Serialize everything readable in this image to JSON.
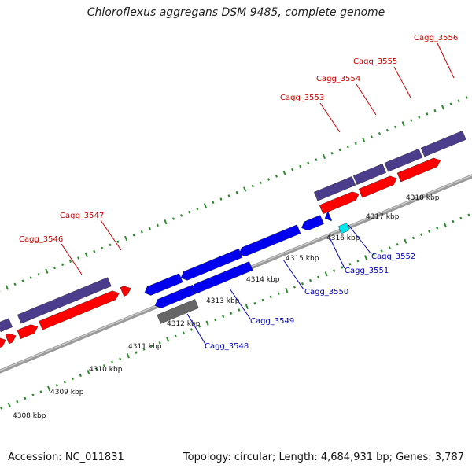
{
  "title": "Chloroflexus aggregans DSM 9485, complete genome",
  "footer": {
    "accession": "Accession: NC_011831",
    "summary": "Topology: circular; Length: 4,684,931 bp; Genes: 3,787"
  },
  "colors": {
    "backbone": "#8a8a8a",
    "tick": "#2e8b2e",
    "plus_label": "#cc0000",
    "minus_label": "#0000bb",
    "cds_dark": "#4b3c8c",
    "cds_red": "#ff0000",
    "cds_blue": "#0000ee",
    "cds_gray": "#666666",
    "cds_cyan": "#00e5ee",
    "cds_orange": "#e8900c"
  },
  "axis_labels": [
    "4308 kbp",
    "4309 kbp",
    "4310 kbp",
    "4311 kbp",
    "4312 kbp",
    "4313 kbp",
    "4314 kbp",
    "4315 kbp",
    "4316 kbp",
    "4317 kbp",
    "4318 kbp"
  ],
  "genes": [
    {
      "name": "Cagg_3546",
      "strand": "plus"
    },
    {
      "name": "Cagg_3547",
      "strand": "plus"
    },
    {
      "name": "Cagg_3548",
      "strand": "minus"
    },
    {
      "name": "Cagg_3549",
      "strand": "minus"
    },
    {
      "name": "Cagg_3550",
      "strand": "minus"
    },
    {
      "name": "Cagg_3551",
      "strand": "minus"
    },
    {
      "name": "Cagg_3552",
      "strand": "minus"
    },
    {
      "name": "Cagg_3553",
      "strand": "plus"
    },
    {
      "name": "Cagg_3554",
      "strand": "plus"
    },
    {
      "name": "Cagg_3555",
      "strand": "plus"
    },
    {
      "name": "Cagg_3556",
      "strand": "plus"
    }
  ]
}
